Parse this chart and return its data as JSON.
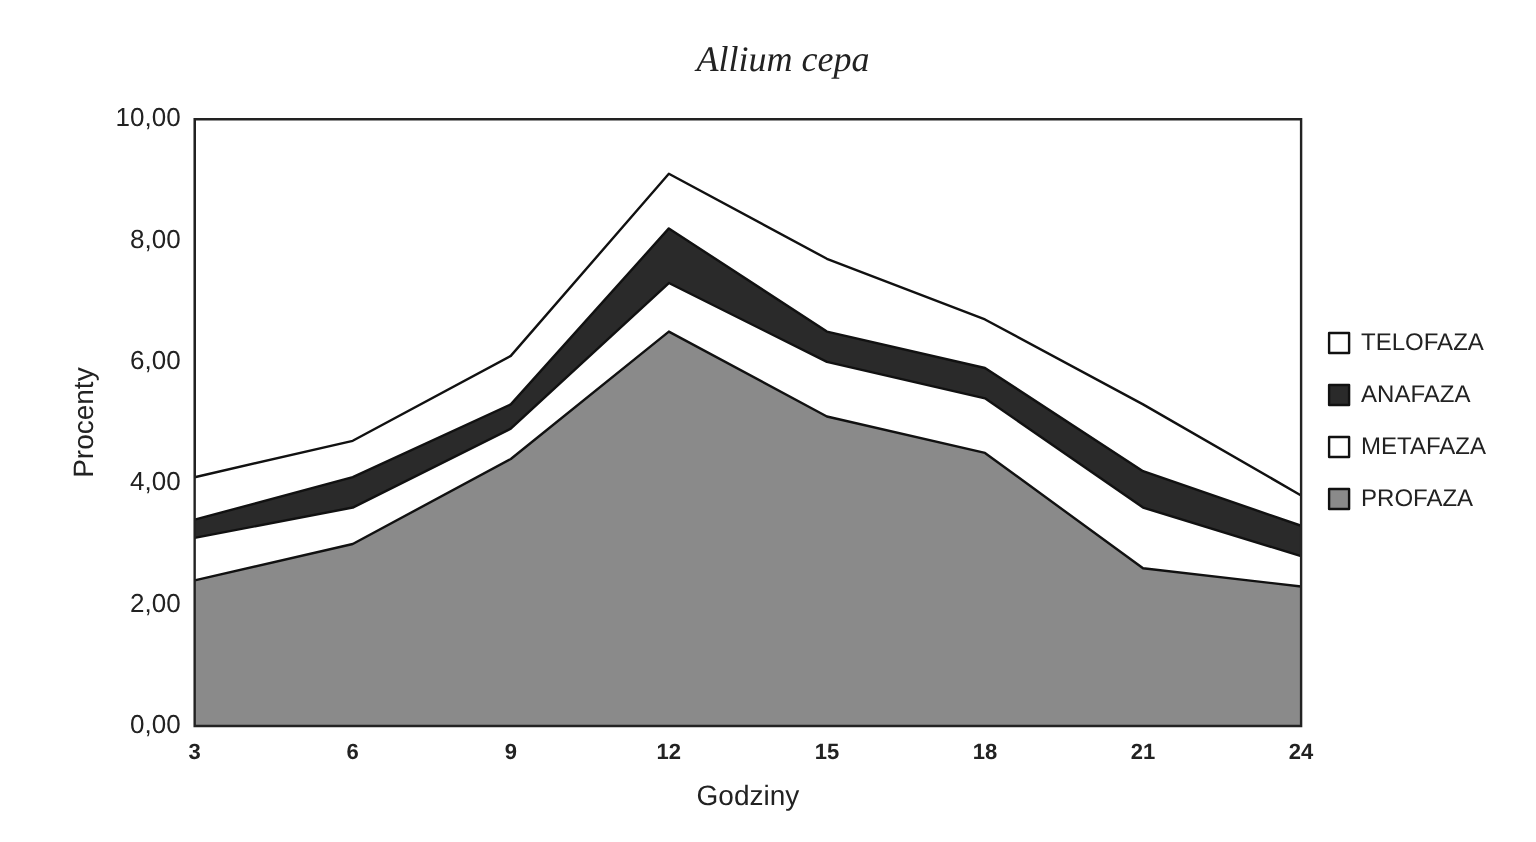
{
  "chart_data": {
    "type": "area",
    "title": "Allium cepa",
    "xlabel": "Godziny",
    "ylabel": "Procenty",
    "stacked": true,
    "categories": [
      "3",
      "6",
      "9",
      "12",
      "15",
      "18",
      "21",
      "24"
    ],
    "series": [
      {
        "name": "PROFAZA",
        "color": "#8a8a8a",
        "values": [
          2.4,
          3.0,
          4.4,
          6.5,
          5.1,
          4.5,
          2.6,
          2.3
        ]
      },
      {
        "name": "METAFAZA",
        "color": "#ffffff",
        "values": [
          0.7,
          0.6,
          0.5,
          0.8,
          0.9,
          0.9,
          1.0,
          0.5
        ]
      },
      {
        "name": "ANAFAZA",
        "color": "#2a2a2a",
        "values": [
          0.3,
          0.5,
          0.4,
          0.9,
          0.5,
          0.5,
          0.6,
          0.5
        ]
      },
      {
        "name": "TELOFAZA",
        "color": "#ffffff",
        "values": [
          0.7,
          0.6,
          0.8,
          0.9,
          1.2,
          0.8,
          1.1,
          0.5
        ]
      }
    ],
    "ylim": [
      0,
      10
    ],
    "yticks": [
      {
        "value": 0,
        "label": "0,00"
      },
      {
        "value": 2,
        "label": "2,00"
      },
      {
        "value": 4,
        "label": "4,00"
      },
      {
        "value": 6,
        "label": "6,00"
      },
      {
        "value": 8,
        "label": "8,00"
      },
      {
        "value": 10,
        "label": "10,00"
      }
    ],
    "grid": false,
    "legend": "right"
  }
}
